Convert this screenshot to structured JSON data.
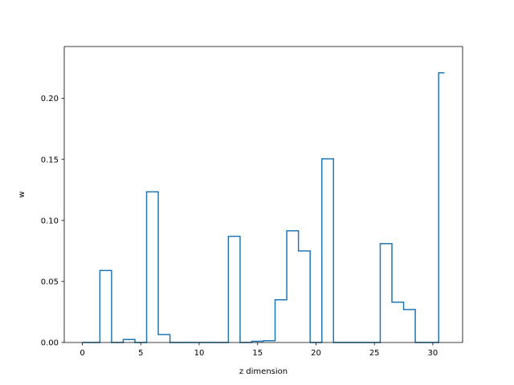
{
  "chart_data": {
    "type": "step",
    "xlabel": "z dimension",
    "ylabel": "w",
    "xlim": [
      -1.55,
      32.55
    ],
    "ylim": [
      0,
      0.2425
    ],
    "xticks": [
      0,
      5,
      10,
      15,
      20,
      25,
      30
    ],
    "yticks": [
      0.0,
      0.05,
      0.1,
      0.15,
      0.2
    ],
    "ytick_labels": [
      "0.00",
      "0.05",
      "0.10",
      "0.15",
      "0.20"
    ],
    "grid": false,
    "legend": "none",
    "series_color": "#1f77b4",
    "bins": [
      {
        "x": 0,
        "w": 0.0
      },
      {
        "x": 1,
        "w": 0.0
      },
      {
        "x": 2,
        "w": 0.059
      },
      {
        "x": 3,
        "w": 0.0
      },
      {
        "x": 4,
        "w": 0.0025
      },
      {
        "x": 5,
        "w": 0.0
      },
      {
        "x": 6,
        "w": 0.1235
      },
      {
        "x": 7,
        "w": 0.0065
      },
      {
        "x": 8,
        "w": 0.0
      },
      {
        "x": 9,
        "w": 0.0
      },
      {
        "x": 10,
        "w": 0.0
      },
      {
        "x": 11,
        "w": 0.0
      },
      {
        "x": 12,
        "w": 0.0
      },
      {
        "x": 13,
        "w": 0.087
      },
      {
        "x": 14,
        "w": 0.0
      },
      {
        "x": 15,
        "w": 0.001
      },
      {
        "x": 16,
        "w": 0.0015
      },
      {
        "x": 17,
        "w": 0.035
      },
      {
        "x": 18,
        "w": 0.0915
      },
      {
        "x": 19,
        "w": 0.075
      },
      {
        "x": 20,
        "w": 0.0
      },
      {
        "x": 21,
        "w": 0.1505
      },
      {
        "x": 22,
        "w": 0.0
      },
      {
        "x": 23,
        "w": 0.0
      },
      {
        "x": 24,
        "w": 0.0
      },
      {
        "x": 25,
        "w": 0.0
      },
      {
        "x": 26,
        "w": 0.081
      },
      {
        "x": 27,
        "w": 0.033
      },
      {
        "x": 28,
        "w": 0.027
      },
      {
        "x": 29,
        "w": 0.0
      },
      {
        "x": 30,
        "w": 0.0
      },
      {
        "x": 31,
        "w": 0.221
      }
    ]
  }
}
